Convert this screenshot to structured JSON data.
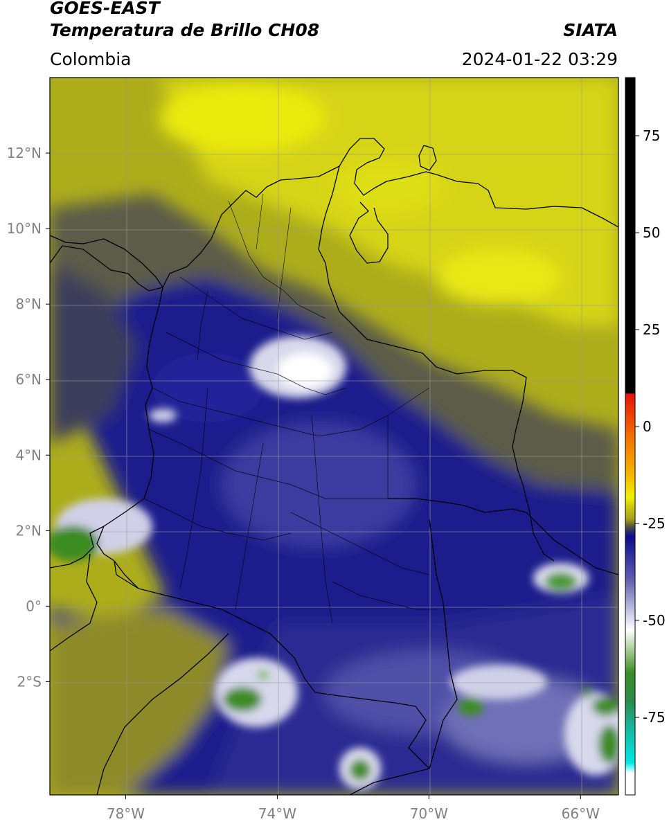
{
  "header": {
    "satellite": "GOES-EAST",
    "product": "Temperatura de Brillo CH08",
    "organization": "SIATA",
    "region": "Colombia",
    "timestamp": "2024-01-22 03:29"
  },
  "map": {
    "lon_range": [
      -80.0,
      -65.0
    ],
    "lat_range": [
      -5.0,
      14.0
    ],
    "grid": true,
    "x_ticks": [
      {
        "value": -78,
        "label": "78°W"
      },
      {
        "value": -74,
        "label": "74°W"
      },
      {
        "value": -70,
        "label": "70°W"
      },
      {
        "value": -66,
        "label": "66°W"
      }
    ],
    "y_ticks": [
      {
        "value": 12,
        "label": "12°N"
      },
      {
        "value": 10,
        "label": "10°N"
      },
      {
        "value": 8,
        "label": "8°N"
      },
      {
        "value": 6,
        "label": "6°N"
      },
      {
        "value": 4,
        "label": "4°N"
      },
      {
        "value": 2,
        "label": "2°N"
      },
      {
        "value": 0,
        "label": "0°"
      },
      {
        "value": -2,
        "label": "2°S"
      }
    ]
  },
  "colorbar": {
    "range": [
      -95,
      90
    ],
    "ticks": [
      {
        "value": 75,
        "label": "75"
      },
      {
        "value": 50,
        "label": "50"
      },
      {
        "value": 25,
        "label": "25"
      },
      {
        "value": 0,
        "label": "0"
      },
      {
        "value": -25,
        "label": "-25"
      },
      {
        "value": -50,
        "label": "-50"
      },
      {
        "value": -75,
        "label": "-75"
      }
    ],
    "colors": {
      "black": "#000000",
      "red": "#e8120c",
      "orange": "#f5a000",
      "yellow": "#f0f000",
      "olive": "#a6a21a",
      "gray": "#3a3a55",
      "navy": "#0c0c8c",
      "lavender": "#b0b0d8",
      "white": "#ffffff",
      "green": "#3c8c24",
      "teal": "#1ab090",
      "cyan": "#00e8e8"
    }
  }
}
